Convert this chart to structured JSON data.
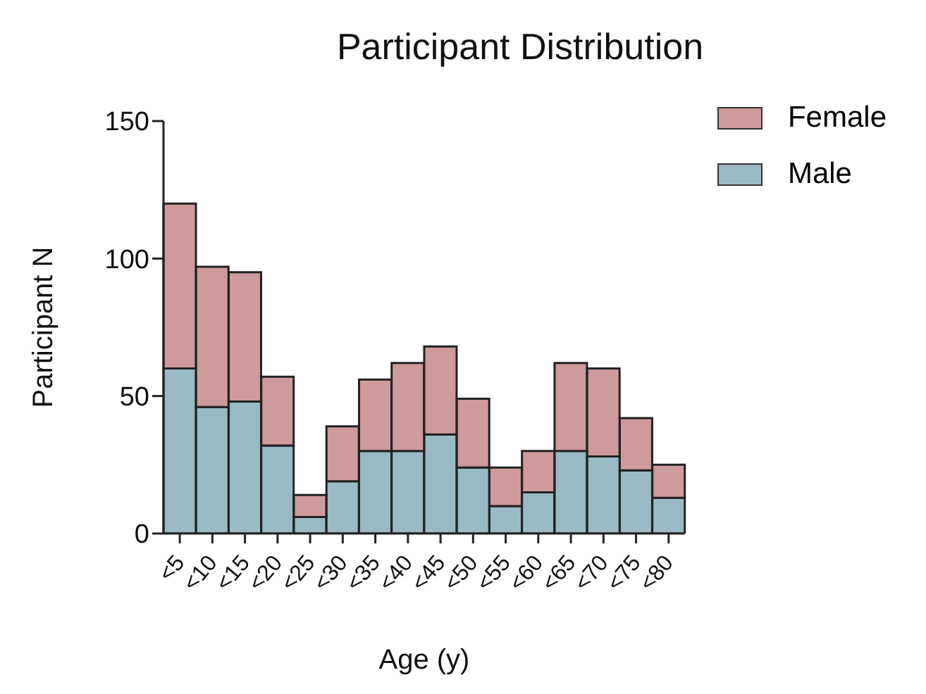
{
  "chart_data": {
    "type": "bar",
    "title": "Participant Distribution",
    "xlabel": "Age (y)",
    "ylabel": "Participant N",
    "categories": [
      "<5",
      "<10",
      "<15",
      "<20",
      "<25",
      "<30",
      "<35",
      "<40",
      "<45",
      "<50",
      "<55",
      "<60",
      "<65",
      "<70",
      "<75",
      "<80"
    ],
    "stacked": true,
    "series": [
      {
        "name": "Male",
        "color": "#99bac4",
        "values": [
          60,
          46,
          48,
          32,
          6,
          19,
          30,
          30,
          36,
          24,
          10,
          15,
          30,
          28,
          23,
          13
        ]
      },
      {
        "name": "Female",
        "color": "#cf9a9c",
        "values": [
          60,
          51,
          47,
          25,
          8,
          20,
          26,
          32,
          32,
          25,
          14,
          15,
          32,
          32,
          19,
          12
        ]
      }
    ],
    "ylim": [
      0,
      150
    ],
    "yticks": [
      0,
      50,
      100,
      150
    ],
    "grid": false,
    "legend": "top right"
  }
}
